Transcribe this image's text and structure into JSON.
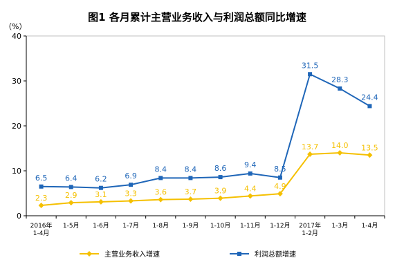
{
  "chart_data": {
    "type": "line",
    "title": "图1 各月累计主营业务收入与利润总额同比增速",
    "ylabel": "（%）",
    "ylim": [
      0,
      40
    ],
    "yticks": [
      0,
      10,
      20,
      30,
      40
    ],
    "categories": [
      [
        "2016年",
        "1-4月"
      ],
      [
        "1-5月"
      ],
      [
        "1-6月"
      ],
      [
        "1-7月"
      ],
      [
        "1-8月"
      ],
      [
        "1-9月"
      ],
      [
        "1-10月"
      ],
      [
        "1-11月"
      ],
      [
        "1-12月"
      ],
      [
        "2017年",
        "1-2月"
      ],
      [
        "1-3月"
      ],
      [
        "1-4月"
      ]
    ],
    "series": [
      {
        "name": "主营业务收入增速",
        "color": "#f5c000",
        "marker": "diamond",
        "values": [
          2.3,
          2.9,
          3.1,
          3.3,
          3.6,
          3.7,
          3.9,
          4.4,
          4.9,
          13.7,
          14.0,
          13.5
        ]
      },
      {
        "name": "利润总额增速",
        "color": "#1f66b8",
        "marker": "square",
        "values": [
          6.5,
          6.4,
          6.2,
          6.9,
          8.4,
          8.4,
          8.6,
          9.4,
          8.5,
          31.5,
          28.3,
          24.4
        ]
      }
    ],
    "grid": true,
    "legend_position": "bottom"
  }
}
